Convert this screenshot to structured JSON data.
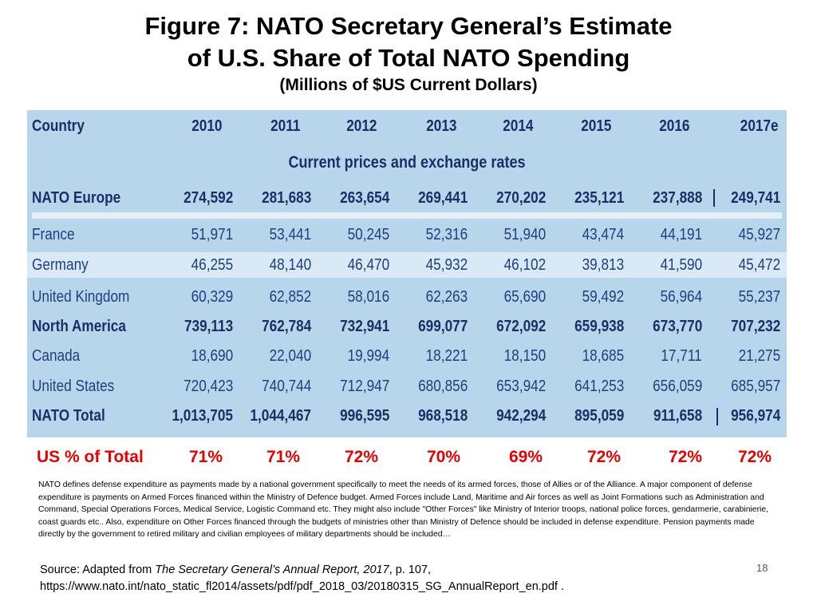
{
  "title": {
    "line1": "Figure 7: NATO Secretary General’s Estimate",
    "line2": "of U.S. Share of Total NATO Spending",
    "subtitle": "(Millions of $US Current Dollars)"
  },
  "table": {
    "header": [
      "Country",
      "2010",
      "2011",
      "2012",
      "2013",
      "2014",
      "2015",
      "2016",
      "2017e"
    ],
    "subheader": "Current prices and exchange rates",
    "rows": [
      {
        "country": "NATO Europe",
        "values": [
          "274,592",
          "281,683",
          "263,654",
          "269,441",
          "270,202",
          "235,121",
          "237,888",
          "249,741"
        ]
      },
      {
        "country": "France",
        "values": [
          "51,971",
          "53,441",
          "50,245",
          "52,316",
          "51,940",
          "43,474",
          "44,191",
          "45,927"
        ]
      },
      {
        "country": "Germany",
        "values": [
          "46,255",
          "48,140",
          "46,470",
          "45,932",
          "46,102",
          "39,813",
          "41,590",
          "45,472"
        ]
      },
      {
        "country": "United Kingdom",
        "values": [
          "60,329",
          "62,852",
          "58,016",
          "62,263",
          "65,690",
          "59,492",
          "56,964",
          "55,237"
        ]
      },
      {
        "country": "North America",
        "values": [
          "739,113",
          "762,784",
          "732,941",
          "699,077",
          "672,092",
          "659,938",
          "673,770",
          "707,232"
        ]
      },
      {
        "country": "Canada",
        "values": [
          "18,690",
          "22,040",
          "19,994",
          "18,221",
          "18,150",
          "18,685",
          "17,711",
          "21,275"
        ]
      },
      {
        "country": "United States",
        "values": [
          "720,423",
          "740,744",
          "712,947",
          "680,856",
          "653,942",
          "641,253",
          "656,059",
          "685,957"
        ]
      },
      {
        "country": "NATO Total",
        "values": [
          "1,013,705",
          "1,044,467",
          "996,595",
          "968,518",
          "942,294",
          "895,059",
          "911,658",
          "956,974"
        ]
      }
    ]
  },
  "us_share": {
    "label": "US % of Total",
    "values": [
      "71%",
      "71%",
      "72%",
      "70%",
      "69%",
      "72%",
      "72%",
      "72%"
    ]
  },
  "note": "NATO defines defense expenditure as payments made by a national government specifically to meet the needs  of its armed forces, those of Allies or of the Alliance. A  major component of defense expenditure is payments  on Armed Forces financed within the Ministry of  Defence budget. Armed Forces include Land, Maritime and Air forces  as well as Joint Formations such as Administration  and Command, Special Operations Forces, Medical  Service, Logistic Command etc. They might also include  \"Other Forces\" like Ministry of Interior troops, national  police forces, gendarmerie, carabinierie, coast guards etc.. Also, expenditure on Other Forces financed through  the budgets of ministries other than Ministry of Defence  should be included in defense expenditure. Pension  payments made directly by the government to retired military and civilian employees of military departments  should be included…",
  "source": {
    "prefix": "Source: Adapted from ",
    "work": "The Secretary General’s Annual Report, 2017",
    "suffix": ",  p. 107,",
    "url": "https://www.nato.int/nato_static_fl2014/assets/pdf/pdf_2018_03/20180315_SG_AnnualReport_en.pdf ."
  },
  "page_number": "18"
}
